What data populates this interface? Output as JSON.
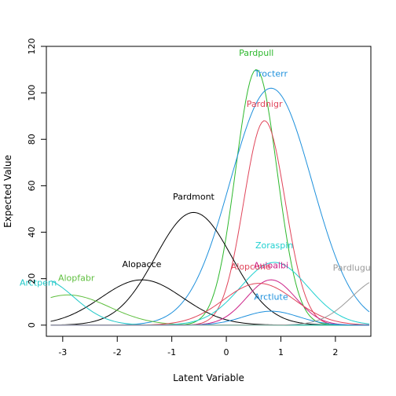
{
  "chart_data": {
    "type": "line",
    "title": "",
    "xlabel": "Latent Variable",
    "ylabel": "Expected Value",
    "xlim": [
      -3.3,
      2.65
    ],
    "ylim": [
      -4.8,
      120
    ],
    "xticks": [
      -3,
      -2,
      -1,
      0,
      1,
      2
    ],
    "yticks": [
      0,
      20,
      40,
      60,
      80,
      100,
      120
    ],
    "grid": false,
    "legend": "none",
    "series": [
      {
        "name": "Pardpull",
        "color": "#2db82d",
        "optimum": 0.55,
        "height": 110,
        "width": 0.38,
        "label_at": [
          0.55,
          116
        ]
      },
      {
        "name": "Trocterr",
        "color": "#1e90dc",
        "optimum": 0.82,
        "height": 102,
        "width": 0.75,
        "label_at": [
          0.82,
          107
        ]
      },
      {
        "name": "Pardnigr",
        "color": "#e0455a",
        "optimum": 0.7,
        "height": 88,
        "width": 0.38,
        "label_at": [
          0.7,
          94
        ]
      },
      {
        "name": "Pardmont",
        "color": "#000000",
        "optimum": -0.6,
        "height": 48.5,
        "width": 0.7,
        "label_at": [
          -0.6,
          54
        ]
      },
      {
        "name": "Alopacce",
        "color": "#000000",
        "optimum": -1.55,
        "height": 19.5,
        "width": 0.75,
        "label_at": [
          -1.55,
          25
        ]
      },
      {
        "name": "Alopfabr",
        "color": "#5fbf3f",
        "optimum": -2.9,
        "height": 13.0,
        "width": 0.75,
        "label_at": [
          -2.75,
          19
        ]
      },
      {
        "name": "Arctpern",
        "color": "#20c8c8",
        "optimum": -3.4,
        "height": 20.0,
        "width": 0.6,
        "label_at": [
          -3.45,
          17
        ]
      },
      {
        "name": "Zoraspin",
        "color": "#20d0d0",
        "optimum": 0.88,
        "height": 27.0,
        "width": 0.62,
        "label_at": [
          0.88,
          33
        ]
      },
      {
        "name": "Auloalbi",
        "color": "#cc2288",
        "optimum": 0.82,
        "height": 19.5,
        "width": 0.45,
        "label_at": [
          0.82,
          24.5
        ]
      },
      {
        "name": "Alopcune",
        "color": "#e0455a",
        "optimum": 0.6,
        "height": 18.0,
        "width": 0.65,
        "label_at": [
          0.45,
          24
        ]
      },
      {
        "name": "Arctlute",
        "color": "#1e90dc",
        "optimum": 0.82,
        "height": 6.0,
        "width": 0.5,
        "label_at": [
          0.82,
          11
        ]
      },
      {
        "name": "Pardlugu",
        "color": "#9a9a9a",
        "optimum": 2.85,
        "height": 20.0,
        "width": 0.55,
        "label_at": [
          2.3,
          23.5
        ]
      }
    ]
  }
}
